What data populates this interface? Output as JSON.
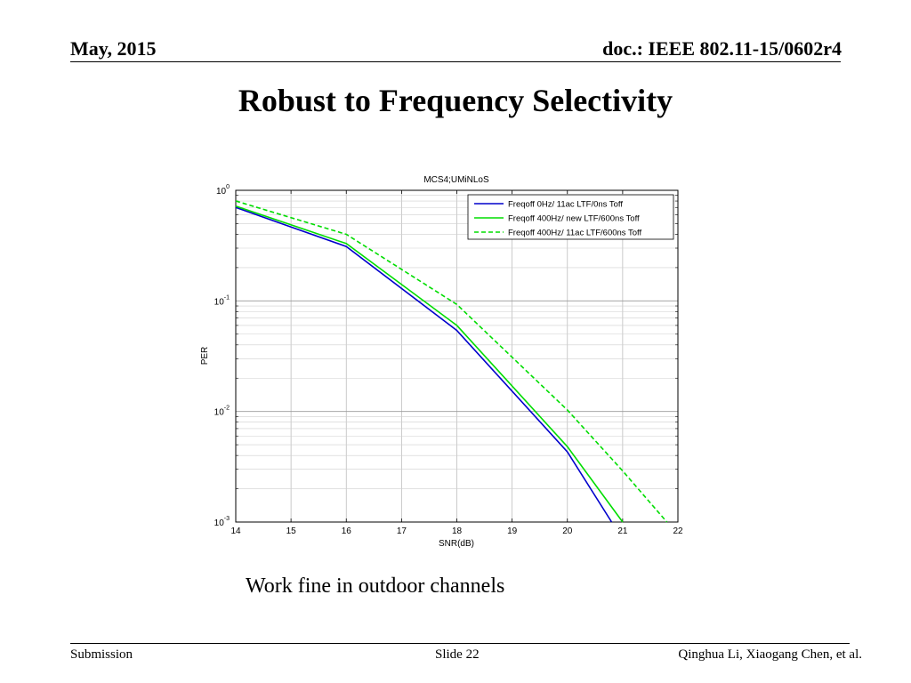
{
  "header": {
    "date": "May, 2015",
    "doc_id": "doc.: IEEE 802.11-15/0602r4"
  },
  "slide": {
    "title": "Robust to Frequency Selectivity",
    "caption": "Work fine in outdoor channels"
  },
  "footer": {
    "left": "Submission",
    "center": "Slide 22",
    "right": "Qinghua Li, Xiaogang Chen, et al."
  },
  "chart_data": {
    "type": "line",
    "title": "MCS4;UMiNLoS",
    "xlabel": "SNR(dB)",
    "ylabel": "PER",
    "xlim": [
      14,
      22
    ],
    "ylim": [
      0.001,
      1
    ],
    "yscale": "log",
    "grid": true,
    "legend_position": "top-right",
    "x_ticks": [
      "14",
      "15",
      "16",
      "17",
      "18",
      "19",
      "20",
      "21",
      "22"
    ],
    "y_ticks": [
      {
        "value": 1,
        "base": "10",
        "exp": "0"
      },
      {
        "value": 0.1,
        "base": "10",
        "exp": "-1"
      },
      {
        "value": 0.01,
        "base": "10",
        "exp": "-2"
      },
      {
        "value": 0.001,
        "base": "10",
        "exp": "-3"
      }
    ],
    "series": [
      {
        "name": "Freqoff 0Hz/ 11ac LTF/0ns Toff",
        "color": "#0000cc",
        "dash": "solid",
        "x": [
          14,
          16,
          18,
          20,
          20.8
        ],
        "y": [
          0.7,
          0.31,
          0.054,
          0.0043,
          0.001
        ]
      },
      {
        "name": "Freqoff 400Hz/ new LTF/600ns Toff",
        "color": "#00dd00",
        "dash": "solid",
        "x": [
          14,
          16,
          18,
          20,
          21
        ],
        "y": [
          0.72,
          0.33,
          0.06,
          0.0048,
          0.001
        ]
      },
      {
        "name": "Freqoff 400Hz/ 11ac LTF/600ns Toff",
        "color": "#00dd00",
        "dash": "dashed",
        "x": [
          14,
          16,
          18,
          20,
          21,
          21.8
        ],
        "y": [
          0.8,
          0.4,
          0.093,
          0.0103,
          0.0029,
          0.001
        ]
      }
    ]
  }
}
